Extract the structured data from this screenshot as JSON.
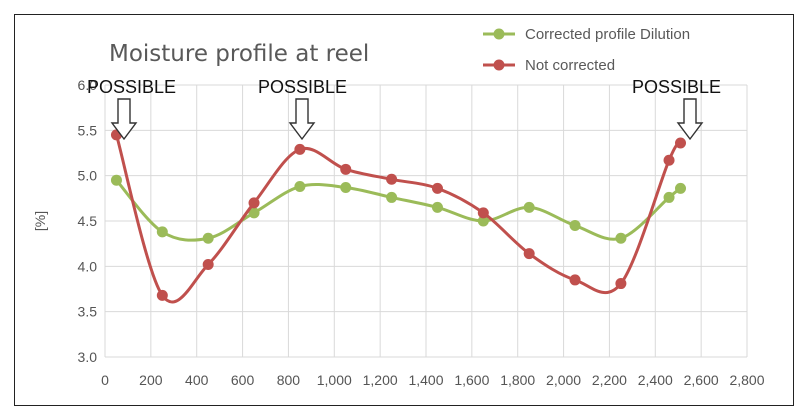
{
  "chart_data": {
    "type": "line",
    "title": "Moisture profile at reel",
    "ylabel": "[%]",
    "xlabel": "",
    "xlim": [
      0,
      2800
    ],
    "ylim": [
      3.0,
      6.0
    ],
    "x_ticks": [
      "0",
      "200",
      "400",
      "600",
      "800",
      "1,000",
      "1,200",
      "1,400",
      "1,600",
      "1,800",
      "2,000",
      "2,200",
      "2,400",
      "2,600",
      "2,800"
    ],
    "y_ticks": [
      "3.0",
      "3.5",
      "4.0",
      "4.5",
      "5.0",
      "5.5",
      "6.0"
    ],
    "grid": true,
    "legend_position": "top-right",
    "series": [
      {
        "name": "Corrected profile Dilution",
        "color": "#9bbb59",
        "x": [
          50,
          250,
          450,
          650,
          850,
          1050,
          1250,
          1450,
          1650,
          1850,
          2050,
          2250,
          2460,
          2510
        ],
        "values": [
          4.95,
          4.38,
          4.31,
          4.59,
          4.88,
          4.87,
          4.76,
          4.65,
          4.5,
          4.65,
          4.45,
          4.31,
          4.76,
          4.86
        ]
      },
      {
        "name": "Not corrected",
        "color": "#c0504d",
        "x": [
          50,
          250,
          450,
          650,
          850,
          1050,
          1250,
          1450,
          1650,
          1850,
          2050,
          2250,
          2460,
          2510
        ],
        "values": [
          5.45,
          3.68,
          4.02,
          4.7,
          5.29,
          5.07,
          4.96,
          4.86,
          4.59,
          4.14,
          3.85,
          3.81,
          5.17,
          5.36
        ]
      }
    ],
    "annotations": [
      {
        "text": "POSSIBLE",
        "x": 70,
        "y": 5.45
      },
      {
        "text": "POSSIBLE",
        "x": 850,
        "y": 5.29
      },
      {
        "text": "POSSIBLE",
        "x": 2500,
        "y": 5.36
      }
    ]
  }
}
